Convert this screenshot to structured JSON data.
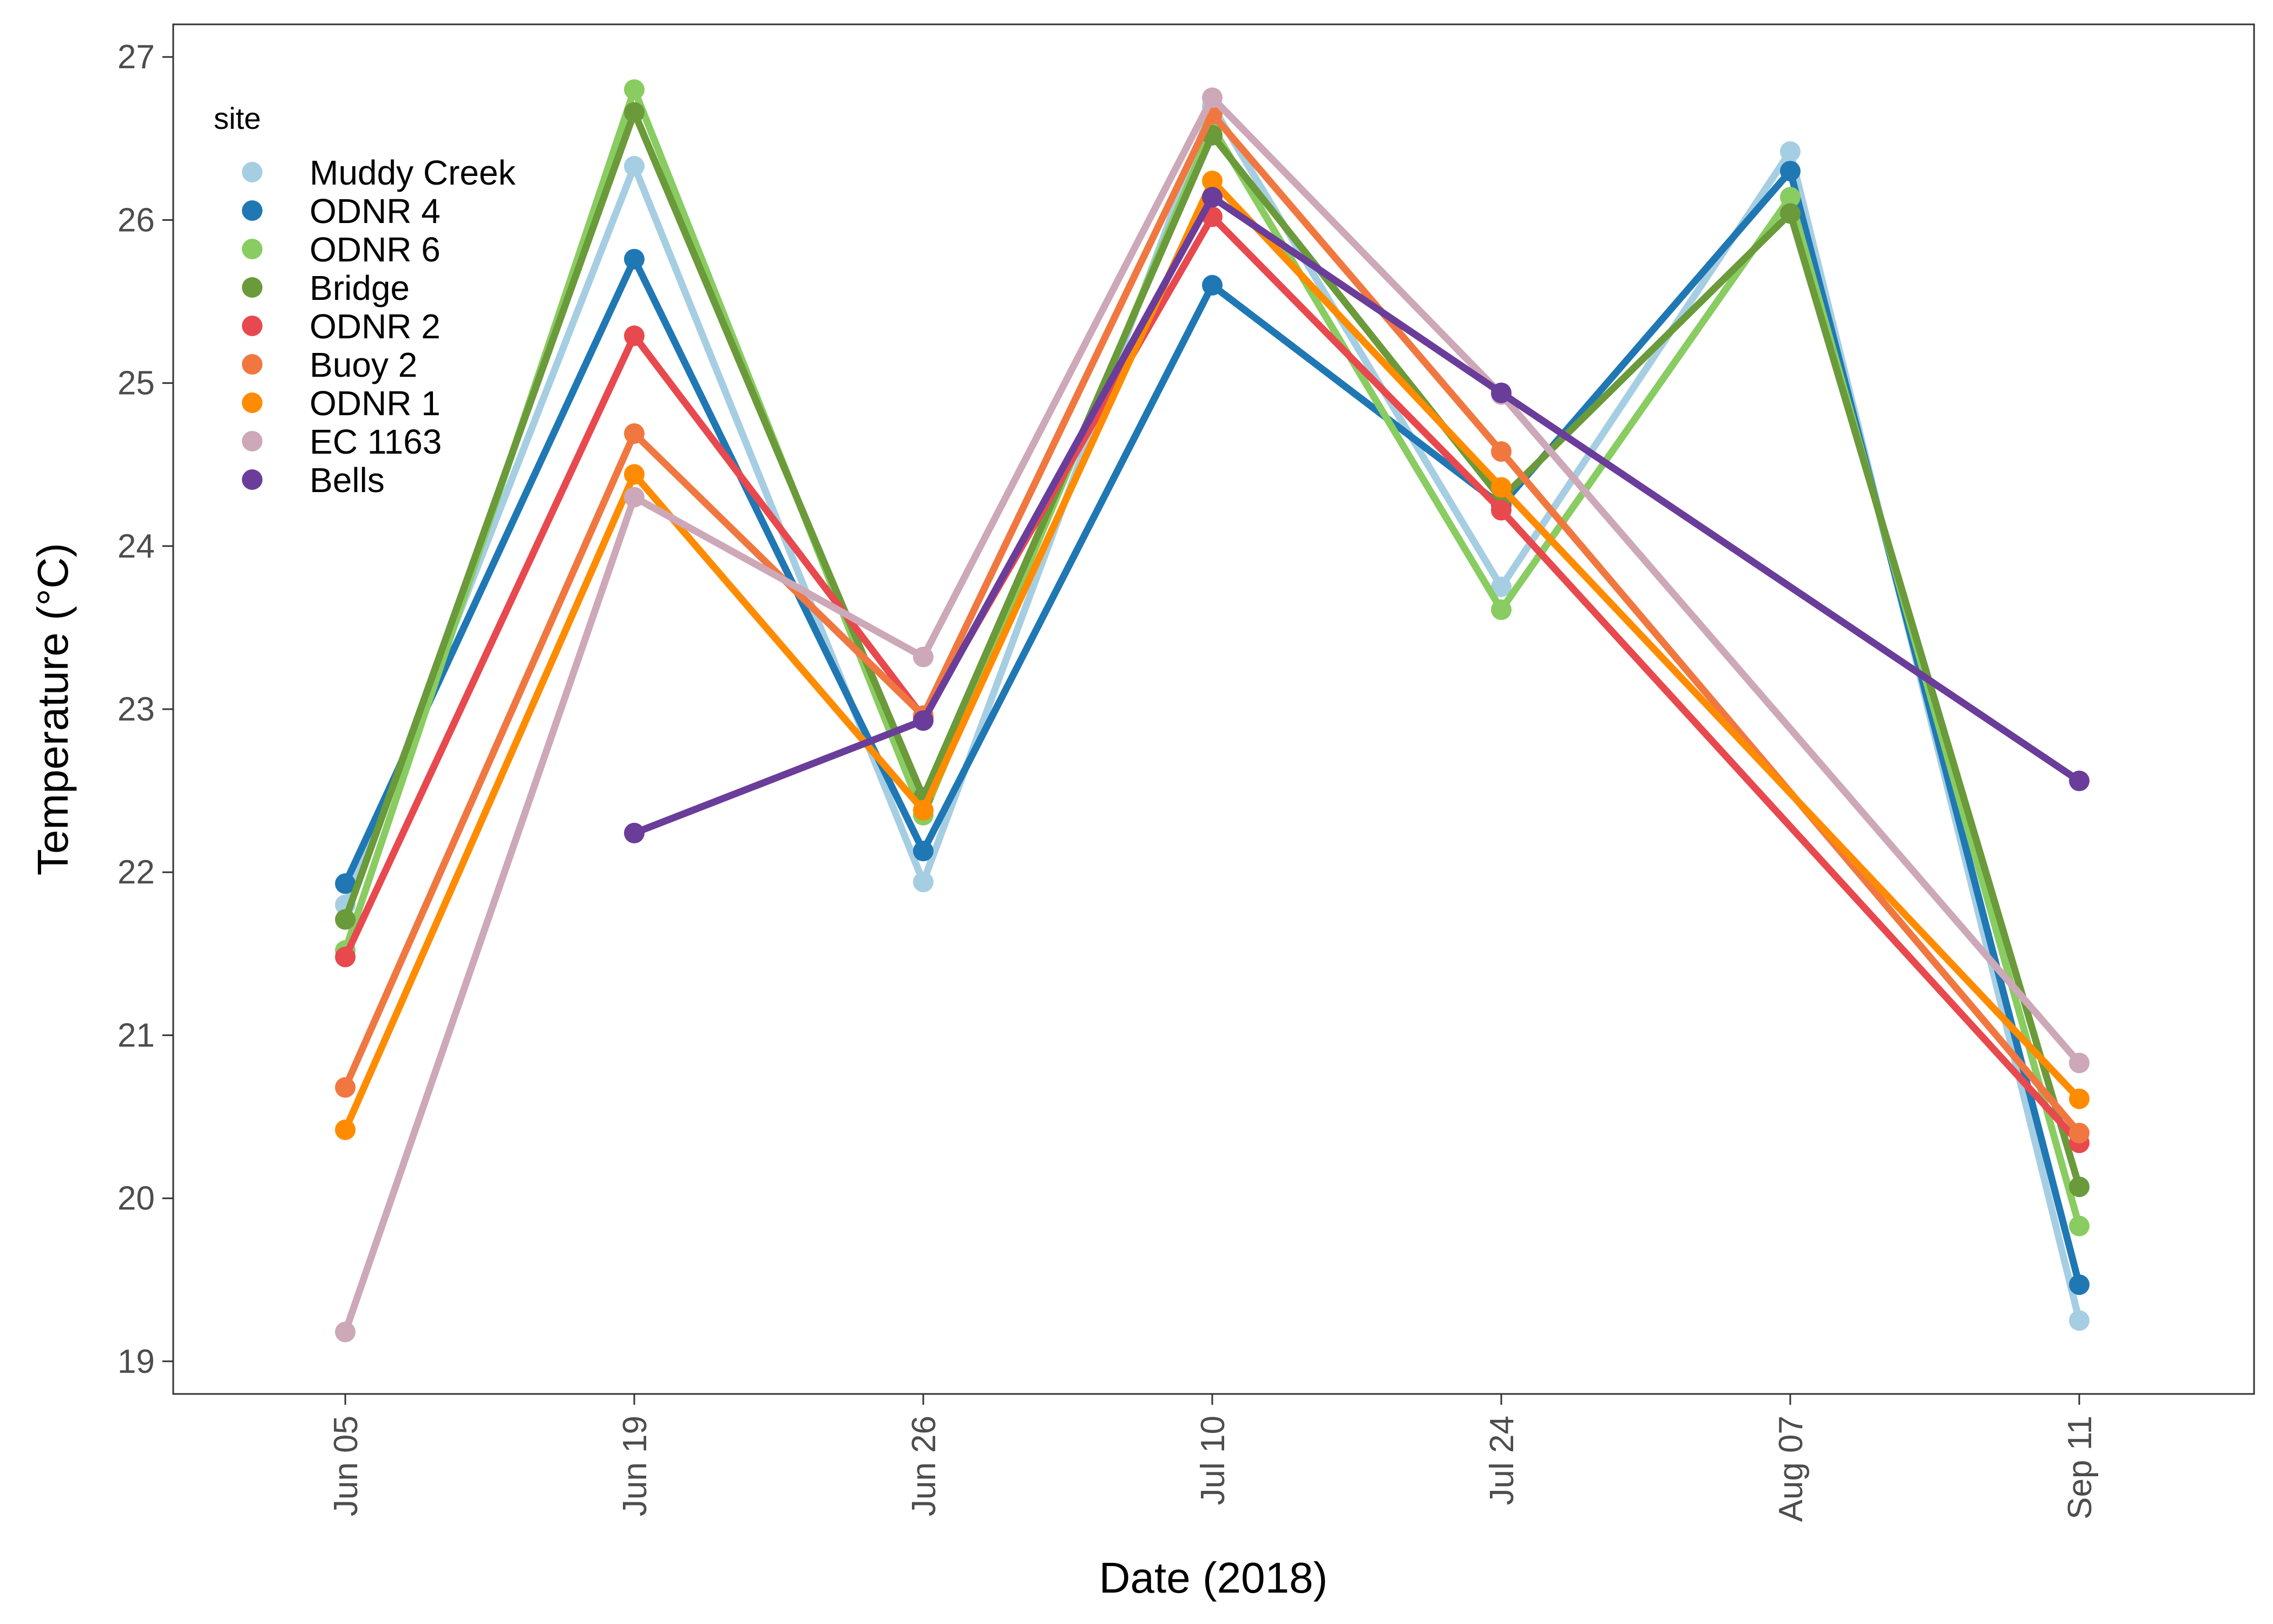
{
  "chart_data": {
    "type": "line",
    "title": "",
    "xlabel": "Date (2018)",
    "ylabel": "Temperature (°C)",
    "categories": [
      "Jun 05",
      "Jun 19",
      "Jun 26",
      "Jul 10",
      "Jul 24",
      "Aug 07",
      "Sep 11"
    ],
    "y_ticks": [
      19,
      20,
      21,
      22,
      23,
      24,
      25,
      26,
      27
    ],
    "ylim": [
      18.8,
      27.2
    ],
    "grid": false,
    "legend": {
      "title": "site",
      "position": "top-left"
    },
    "series": [
      {
        "name": "Muddy Creek",
        "color": "#a6cee3",
        "values": [
          21.8,
          26.33,
          21.94,
          26.7,
          23.75,
          26.42,
          19.25
        ]
      },
      {
        "name": "ODNR 4",
        "color": "#1f78b4",
        "values": [
          21.93,
          25.76,
          22.13,
          25.6,
          24.25,
          26.3,
          19.47
        ]
      },
      {
        "name": "ODNR 6",
        "color": "#89cc61",
        "values": [
          21.52,
          26.8,
          22.35,
          26.57,
          23.61,
          26.14,
          19.83
        ]
      },
      {
        "name": "Bridge",
        "color": "#6a9a3a",
        "values": [
          21.71,
          26.66,
          22.46,
          26.52,
          24.29,
          26.04,
          20.07
        ]
      },
      {
        "name": "ODNR 2",
        "color": "#e8494e",
        "values": [
          21.48,
          25.29,
          22.95,
          26.02,
          24.22,
          null,
          20.34
        ]
      },
      {
        "name": "Buoy 2",
        "color": "#f07840",
        "values": [
          20.68,
          24.69,
          22.96,
          26.65,
          24.58,
          null,
          20.4
        ]
      },
      {
        "name": "ODNR 1",
        "color": "#ff8c00",
        "values": [
          20.42,
          24.44,
          22.38,
          26.24,
          24.36,
          null,
          20.61
        ]
      },
      {
        "name": "EC 1163",
        "color": "#cda8b8",
        "values": [
          19.18,
          24.3,
          23.32,
          26.75,
          24.93,
          null,
          20.83
        ]
      },
      {
        "name": "Bells",
        "color": "#6a3d9a",
        "values": [
          null,
          22.24,
          22.93,
          26.14,
          24.94,
          null,
          22.56
        ]
      }
    ]
  }
}
